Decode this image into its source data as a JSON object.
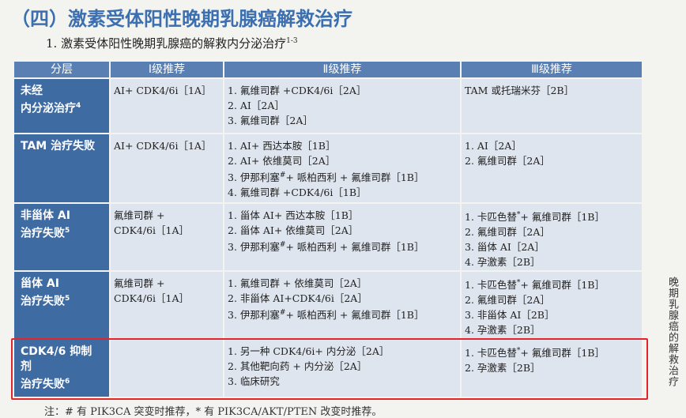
{
  "title": "（四）激素受体阳性晚期乳腺癌解救治疗",
  "subtitle": {
    "text": "1. 激素受体阳性晚期乳腺癌的解救内分泌治疗",
    "sup": "1-3"
  },
  "table": {
    "header": [
      "分层",
      "Ⅰ级推荐",
      "Ⅱ级推荐",
      "Ⅲ级推荐"
    ],
    "rows": [
      {
        "layer": [
          "未经",
          "内分泌治疗"
        ],
        "layer_sup": "4",
        "level1": [
          "AI+ CDK4/6i［1A］"
        ],
        "level2": [
          [
            "1. 氟维司群 +CDK4/6i［2A］"
          ],
          [
            "2. AI［2A］"
          ],
          [
            "3. 氟维司群［2A］"
          ]
        ],
        "level3": [
          [
            "TAM 或托瑞米芬［2B］"
          ]
        ]
      },
      {
        "layer": [
          "TAM 治疗失败"
        ],
        "level1": [
          "AI+ CDK4/6i［1A］"
        ],
        "level2": [
          [
            "1. AI+ 西达本胺［1B］"
          ],
          [
            "2. AI+ 依维莫司［2A］"
          ],
          [
            "3. 伊那利塞",
            {
              "sup": "#"
            },
            "+ 哌柏西利 + 氟维司群［1B］"
          ],
          [
            "4. 氟维司群 +CDK4/6i［1B］"
          ]
        ],
        "level3": [
          [
            "1. AI［2A］"
          ],
          [
            "2. 氟维司群［2A］"
          ]
        ]
      },
      {
        "layer": [
          "非甾体 AI",
          "治疗失败"
        ],
        "layer_sup": "5",
        "level1": [
          "氟维司群 +",
          "CDK4/6i［1A］"
        ],
        "level2": [
          [
            "1. 甾体 AI+ 西达本胺［1B］"
          ],
          [
            "2. 甾体 AI+ 依维莫司［2A］"
          ],
          [
            "3. 伊那利塞",
            {
              "sup": "#"
            },
            "+ 哌柏西利 + 氟维司群［1B］"
          ]
        ],
        "level3": [
          [
            "1. 卡匹色替",
            {
              "sup": "*"
            },
            "+ 氟维司群［1B］"
          ],
          [
            "2. 氟维司群［2A］"
          ],
          [
            "3. 甾体 AI［2A］"
          ],
          [
            "4. 孕激素［2B］"
          ]
        ]
      },
      {
        "layer": [
          "甾体 AI",
          "治疗失败"
        ],
        "layer_sup": "5",
        "level1": [
          "氟维司群 +",
          "CDK4/6i［1A］"
        ],
        "level2": [
          [
            "1. 氟维司群 + 依维莫司［2A］"
          ],
          [
            "2. 非甾体 AI+CDK4/6i［2A］"
          ],
          [
            "3. 伊那利塞",
            {
              "sup": "#"
            },
            "+ 哌柏西利 + 氟维司群［1B］"
          ]
        ],
        "level3": [
          [
            "1. 卡匹色替",
            {
              "sup": "*"
            },
            "+ 氟维司群［1B］"
          ],
          [
            "2. 氟维司群［2A］"
          ],
          [
            "3. 非甾体 AI［2B］"
          ],
          [
            "4. 孕激素［2B］"
          ]
        ]
      },
      {
        "layer": [
          "CDK4/6 抑制剂",
          "治疗失败"
        ],
        "layer_sup": "6",
        "level1": [],
        "level2": [
          [
            "1. 另一种 CDK4/6i+ 内分泌［2A］"
          ],
          [
            "2. 其他靶向药 + 内分泌［2A］"
          ],
          [
            "3. 临床研究"
          ]
        ],
        "level3": [
          [
            "1. 卡匹色替",
            {
              "sup": "*"
            },
            "+ 氟维司群［1B］"
          ],
          [
            "2. 孕激素［2B］"
          ]
        ]
      }
    ]
  },
  "footnote": "注：# 有 PIK3CA 突变时推荐，* 有 PIK3CA/AKT/PTEN 改变时推荐。",
  "side_label": "晚期乳腺癌的解救治疗"
}
